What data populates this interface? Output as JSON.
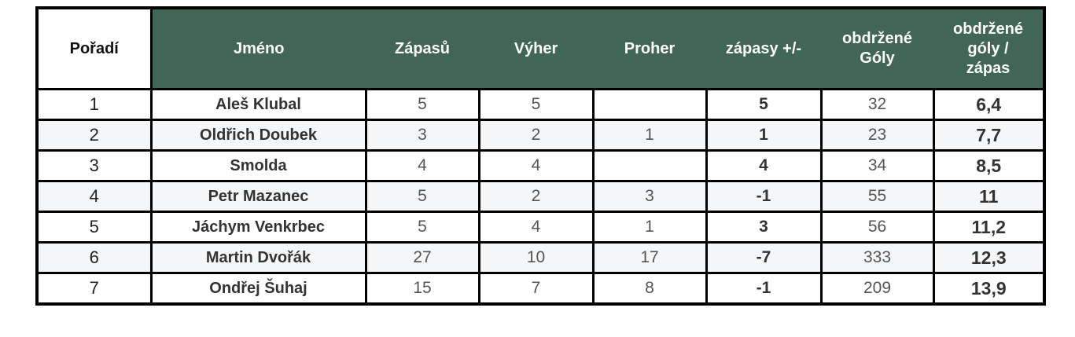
{
  "table": {
    "headers": [
      "Pořadí",
      "Jméno",
      "Zápasů",
      "Výher",
      "Proher",
      "zápasy +/-",
      "obdržené Góly",
      "obdržené góly / zápas"
    ],
    "rows": [
      [
        "1",
        "Aleš Klubal",
        "5",
        "5",
        "",
        "5",
        "32",
        "6,4"
      ],
      [
        "2",
        "Oldřich Doubek",
        "3",
        "2",
        "1",
        "1",
        "23",
        "7,7"
      ],
      [
        "3",
        "Smolda",
        "4",
        "4",
        "",
        "4",
        "34",
        "8,5"
      ],
      [
        "4",
        "Petr Mazanec",
        "5",
        "2",
        "3",
        "-1",
        "55",
        "11"
      ],
      [
        "5",
        "Jáchym Venkrbec",
        "5",
        "4",
        "1",
        "3",
        "56",
        "11,2"
      ],
      [
        "6",
        "Martin Dvořák",
        "27",
        "10",
        "17",
        "-7",
        "333",
        "12,3"
      ],
      [
        "7",
        "Ondřej Šuhaj",
        "15",
        "7",
        "8",
        "-1",
        "209",
        "13,9"
      ]
    ]
  },
  "colors": {
    "header_bg": "#416655",
    "header_text": "#ffffff",
    "alt_row": "#f4f6f8"
  }
}
